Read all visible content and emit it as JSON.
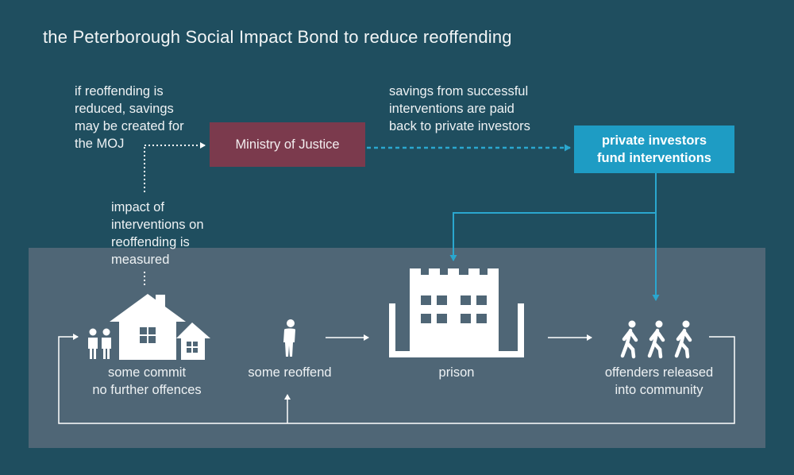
{
  "title": "the Peterborough Social Impact Bond to reduce reoffending",
  "notes": {
    "savings_moj": "if reoffending is\nreduced, savings\nmay be created for\nthe MOJ",
    "savings_investors": "savings from successful\ninterventions are paid\nback to private investors",
    "impact_measured": "impact of\ninterventions on\nreoffending is\nmeasured"
  },
  "boxes": {
    "moj": "Ministry of Justice",
    "investors": "private investors\nfund interventions"
  },
  "stages": {
    "no_further": "some commit\nno further offences",
    "reoffend": "some reoffend",
    "prison": "prison",
    "released": "offenders released\ninto community"
  },
  "colors": {
    "background": "#1f4e5f",
    "panel": "#4f6676",
    "moj_box": "#7b3a4d",
    "investor_box": "#1e9cc4",
    "investor_arrow": "#2aa7cf"
  },
  "icons": [
    "people-icon",
    "house-icon",
    "person-icon",
    "prison-icon",
    "walking-people-icon"
  ]
}
